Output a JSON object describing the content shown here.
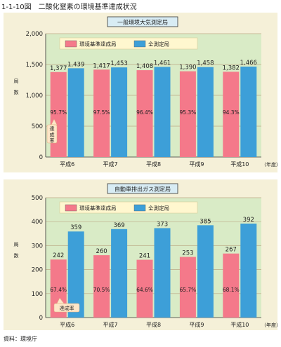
{
  "figure_title": "1-1-10図　二酸化窒素の環境基準達成状況",
  "source": "資料：環境庁",
  "chart_data": [
    {
      "type": "bar",
      "title": "一般環境大気測定局",
      "ylabel": "局数",
      "ylim": [
        0,
        2000
      ],
      "yticks": [
        "0",
        "500",
        "1,000",
        "1,500",
        "2,000"
      ],
      "categories": [
        "平成6",
        "平成7",
        "平成8",
        "平成9",
        "平成10"
      ],
      "x_unit": "（年度）",
      "series": [
        {
          "name": "環境基準達成局",
          "color": "#f4798a",
          "values": [
            1377,
            1417,
            1408,
            1390,
            1382
          ],
          "labels": [
            "1,377",
            "1,417",
            "1,408",
            "1,390",
            "1,382"
          ]
        },
        {
          "name": "全測定局",
          "color": "#3d9fd8",
          "values": [
            1439,
            1453,
            1461,
            1458,
            1466
          ],
          "labels": [
            "1,439",
            "1,453",
            "1,461",
            "1,458",
            "1,466"
          ]
        }
      ],
      "rates": [
        "95.7%",
        "97.5%",
        "96.4%",
        "95.3%",
        "94.3%"
      ],
      "rate_label": "達成率",
      "grid": true,
      "legend": "top"
    },
    {
      "type": "bar",
      "title": "自動車排出ガス測定局",
      "ylabel": "局数",
      "ylim": [
        0,
        500
      ],
      "yticks": [
        "0",
        "100",
        "200",
        "300",
        "400",
        "500"
      ],
      "categories": [
        "平成6",
        "平成7",
        "平成8",
        "平成9",
        "平成10"
      ],
      "x_unit": "（年度）",
      "series": [
        {
          "name": "環境基準達成局",
          "color": "#f4798a",
          "values": [
            242,
            260,
            241,
            253,
            267
          ],
          "labels": [
            "242",
            "260",
            "241",
            "253",
            "267"
          ]
        },
        {
          "name": "全測定局",
          "color": "#3d9fd8",
          "values": [
            359,
            369,
            373,
            385,
            392
          ],
          "labels": [
            "359",
            "369",
            "373",
            "385",
            "392"
          ]
        }
      ],
      "rates": [
        "67.4%",
        "70.5%",
        "64.6%",
        "65.7%",
        "68.1%"
      ],
      "rate_label": "達成率",
      "grid": true,
      "legend": "top"
    }
  ]
}
